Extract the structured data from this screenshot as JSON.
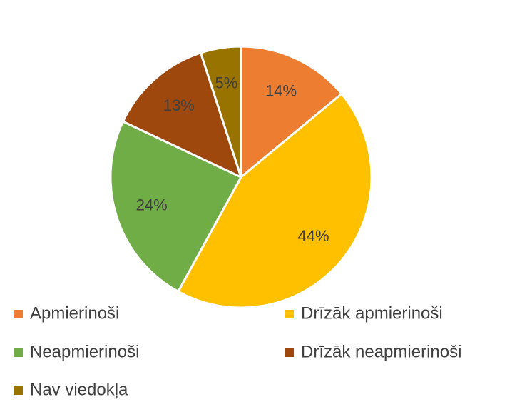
{
  "chart_data": {
    "type": "pie",
    "categories": [
      "Apmierinoši",
      "Drīzāk apmierinoši",
      "Neapmierinoši",
      "Drīzāk neapmierinoši",
      "Nav viedokļa"
    ],
    "values": [
      14,
      44,
      24,
      13,
      5
    ],
    "value_labels": [
      "14%",
      "44%",
      "24%",
      "13%",
      "5%"
    ],
    "colors": [
      "#ED7D31",
      "#FFC000",
      "#70AD47",
      "#9E480E",
      "#997300"
    ],
    "legend": "bottom"
  }
}
